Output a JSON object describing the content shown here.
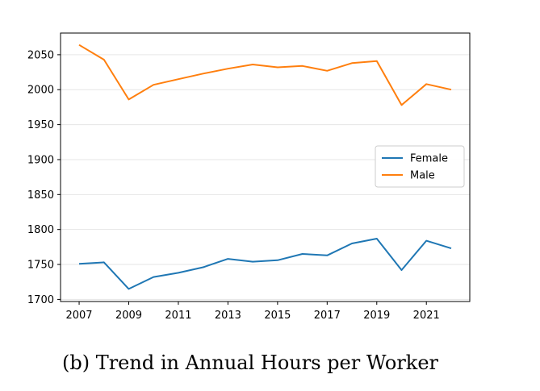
{
  "caption": "(b) Trend in Annual Hours per Worker",
  "chart_data": {
    "type": "line",
    "x": [
      2007,
      2008,
      2009,
      2010,
      2011,
      2012,
      2013,
      2014,
      2015,
      2016,
      2017,
      2018,
      2019,
      2020,
      2021,
      2022
    ],
    "xticks": [
      2007,
      2009,
      2011,
      2013,
      2015,
      2017,
      2019,
      2021
    ],
    "yticks": [
      1700,
      1750,
      1800,
      1850,
      1900,
      1950,
      2000,
      2050
    ],
    "xlim": [
      2006.25,
      2022.75
    ],
    "ylim": [
      1697,
      2081
    ],
    "grid": true,
    "legend_position": "center-right",
    "series": [
      {
        "name": "Female",
        "color": "#1f77b4",
        "values": [
          1751,
          1753,
          1715,
          1732,
          1738,
          1746,
          1758,
          1754,
          1756,
          1765,
          1763,
          1780,
          1787,
          1742,
          1784,
          1773
        ]
      },
      {
        "name": "Male",
        "color": "#ff7f0e",
        "values": [
          2064,
          2043,
          1986,
          2007,
          2015,
          2023,
          2030,
          2036,
          2032,
          2034,
          2027,
          2038,
          2041,
          1978,
          2008,
          2000
        ]
      }
    ]
  }
}
